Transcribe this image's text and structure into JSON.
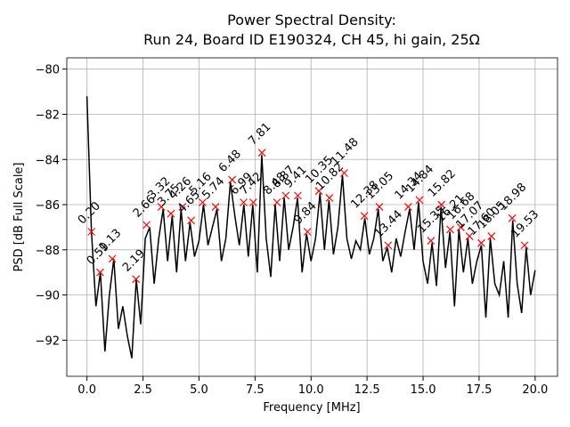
{
  "chart_data": {
    "type": "line",
    "title": "Power Spectral Density:",
    "subtitle": "Run 24, Board ID E190324, CH 45, hi gain, 25Ω",
    "x_label": "Frequency [MHz]",
    "y_label": "PSD [dB Full Scale]",
    "xlim": [
      -0.9,
      21.0
    ],
    "ylim": [
      -93.6,
      -79.5
    ],
    "xticks": [
      {
        "value": 0,
        "label": "0.0"
      },
      {
        "value": 2.5,
        "label": "2.5"
      },
      {
        "value": 5,
        "label": "5.0"
      },
      {
        "value": 7.5,
        "label": "7.5"
      },
      {
        "value": 10,
        "label": "10.0"
      },
      {
        "value": 12.5,
        "label": "12.5"
      },
      {
        "value": 15,
        "label": "15.0"
      },
      {
        "value": 17.5,
        "label": "17.5"
      },
      {
        "value": 20,
        "label": "20.0"
      }
    ],
    "yticks": [
      {
        "value": -92,
        "label": "−92"
      },
      {
        "value": -90,
        "label": "−90"
      },
      {
        "value": -88,
        "label": "−88"
      },
      {
        "value": -86,
        "label": "−86"
      },
      {
        "value": -84,
        "label": "−84"
      },
      {
        "value": -82,
        "label": "−82"
      },
      {
        "value": -80,
        "label": "−80"
      }
    ],
    "grid": true,
    "line": {
      "color": "#000000",
      "x": [
        0.0,
        0.2,
        0.4,
        0.6,
        0.8,
        1.0,
        1.2,
        1.4,
        1.6,
        1.8,
        2.0,
        2.2,
        2.4,
        2.6,
        2.8,
        3.0,
        3.2,
        3.4,
        3.6,
        3.8,
        4.0,
        4.2,
        4.4,
        4.6,
        4.8,
        5.0,
        5.2,
        5.4,
        5.6,
        5.8,
        6.0,
        6.2,
        6.4,
        6.6,
        6.8,
        7.0,
        7.2,
        7.4,
        7.6,
        7.8,
        8.0,
        8.2,
        8.4,
        8.6,
        8.8,
        9.0,
        9.2,
        9.4,
        9.6,
        9.8,
        10.0,
        10.2,
        10.4,
        10.6,
        10.8,
        11.0,
        11.2,
        11.4,
        11.6,
        11.8,
        12.0,
        12.2,
        12.4,
        12.6,
        12.8,
        13.0,
        13.2,
        13.4,
        13.6,
        13.8,
        14.0,
        14.2,
        14.4,
        14.6,
        14.8,
        15.0,
        15.2,
        15.4,
        15.6,
        15.8,
        16.0,
        16.2,
        16.4,
        16.6,
        16.8,
        17.0,
        17.2,
        17.4,
        17.6,
        17.8,
        18.0,
        18.2,
        18.4,
        18.6,
        18.8,
        19.0,
        19.2,
        19.4,
        19.6,
        19.8,
        20.0
      ],
      "y": [
        -81.2,
        -87.2,
        -90.5,
        -89.0,
        -92.5,
        -90.0,
        -88.4,
        -91.5,
        -90.5,
        -91.8,
        -92.8,
        -89.3,
        -91.3,
        -87.5,
        -87.0,
        -89.5,
        -87.5,
        -86.2,
        -88.5,
        -86.5,
        -89.0,
        -86.2,
        -88.5,
        -86.8,
        -88.3,
        -87.6,
        -86.0,
        -87.8,
        -87.0,
        -86.2,
        -88.5,
        -87.5,
        -85.0,
        -86.5,
        -87.8,
        -86.0,
        -88.3,
        -86.0,
        -89.0,
        -83.8,
        -87.5,
        -89.2,
        -86.0,
        -88.5,
        -85.7,
        -88.0,
        -87.0,
        -85.7,
        -89.0,
        -87.3,
        -88.5,
        -87.5,
        -85.5,
        -88.0,
        -85.8,
        -88.2,
        -87.0,
        -84.7,
        -87.5,
        -88.4,
        -87.6,
        -88.0,
        -86.6,
        -88.2,
        -87.5,
        -86.2,
        -88.5,
        -87.9,
        -89.0,
        -87.5,
        -88.3,
        -87.2,
        -86.2,
        -88.0,
        -85.9,
        -88.5,
        -89.5,
        -87.7,
        -89.6,
        -86.1,
        -88.8,
        -87.2,
        -90.5,
        -87.1,
        -89.0,
        -87.5,
        -89.5,
        -88.5,
        -87.8,
        -91.0,
        -87.5,
        -89.5,
        -90.0,
        -88.5,
        -91.0,
        -86.7,
        -89.5,
        -90.8,
        -87.9,
        -90.0,
        -88.9
      ]
    },
    "peaks": {
      "color": "#ff0000",
      "x": [
        0.2,
        0.59,
        1.13,
        2.19,
        2.66,
        3.32,
        3.75,
        4.26,
        4.65,
        5.16,
        5.74,
        6.48,
        6.99,
        7.42,
        7.81,
        8.48,
        8.87,
        9.41,
        9.84,
        10.35,
        10.82,
        11.48,
        12.38,
        13.05,
        13.44,
        14.34,
        14.84,
        15.35,
        15.82,
        16.21,
        16.68,
        17.07,
        17.6,
        18.05,
        18.98,
        19.53
      ],
      "x_labels": [
        "0.20",
        "0.59",
        "1.13",
        "2.19",
        "2.66",
        "3.32",
        "3.75",
        "4.26",
        "4.65",
        "5.16",
        "5.74",
        "6.48",
        "6.99",
        "7.42",
        "7.81",
        "8.48",
        "8.87",
        "9.41",
        "9.84",
        "10.35",
        "10.82",
        "11.48",
        "12.38",
        "13.05",
        "13.44",
        "14.34",
        "14.84",
        "15.35",
        "15.82",
        "16.21",
        "16.68",
        "17.07",
        "17.60",
        "18.05",
        "18.98",
        "19.53"
      ],
      "values": [
        -87.2,
        -89.0,
        -88.4,
        -89.3,
        -86.9,
        -86.1,
        -86.4,
        -86.1,
        -86.7,
        -85.9,
        -86.1,
        -84.9,
        -85.9,
        -85.9,
        -83.7,
        -85.9,
        -85.6,
        -85.6,
        -87.2,
        -85.4,
        -85.7,
        -84.6,
        -86.5,
        -86.1,
        -87.8,
        -86.1,
        -85.8,
        -87.6,
        -86.0,
        -87.1,
        -87.0,
        -87.4,
        -87.7,
        -87.4,
        -86.6,
        -87.8
      ]
    }
  }
}
